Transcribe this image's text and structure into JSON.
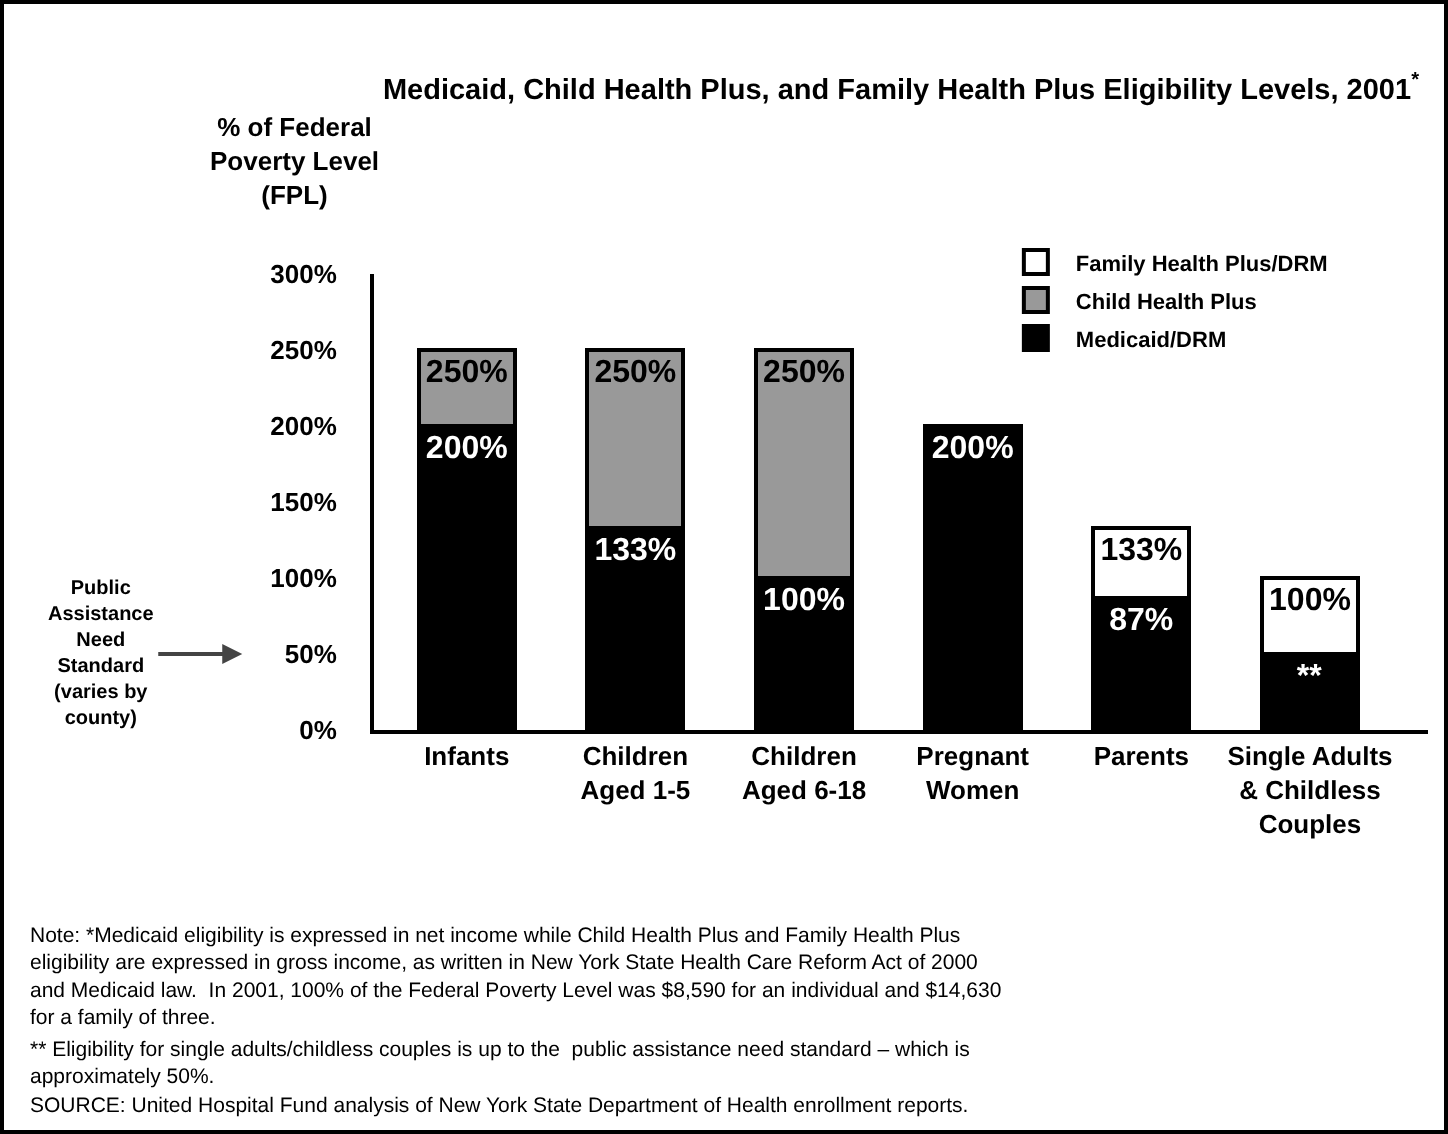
{
  "chart_data": {
    "type": "bar",
    "stacked": true,
    "title": "Medicaid, Child Health Plus, and Family Health Plus Eligibility Levels, 2001$^{*}$",
    "ylabel": "% of Federal\nPoverty Level\n(FPL)",
    "categories": [
      "Infants",
      "Children\nAged 1-5",
      "Children\nAged 6-18",
      "Pregnant\nWomen",
      "Parents",
      "Single Adults\n& Childless\nCouples"
    ],
    "series": [
      {
        "name": "Medicaid/DRM",
        "color": "#000000",
        "values": [
          200,
          133,
          100,
          200,
          87,
          50
        ],
        "value_labels": [
          "200%",
          "133%",
          "100%",
          "200%",
          "87%",
          "**"
        ]
      },
      {
        "name": "Child Health Plus",
        "color": "#999999",
        "values": [
          50,
          117,
          150,
          null,
          null,
          null
        ]
      },
      {
        "name": "Family Health Plus/DRM",
        "color": "#ffffff",
        "values": [
          null,
          null,
          null,
          null,
          46,
          50
        ]
      }
    ],
    "totals": [
      "250%",
      "250%",
      "250%",
      null,
      "133%",
      "100%"
    ],
    "ylim": [
      0,
      300
    ],
    "yticks": [
      {
        "value": 0,
        "label": "0%"
      },
      {
        "value": 50,
        "label": "50%"
      },
      {
        "value": 100,
        "label": "100%"
      },
      {
        "value": 150,
        "label": "150%"
      },
      {
        "value": 200,
        "label": "200%"
      },
      {
        "value": 250,
        "label": "250%"
      },
      {
        "value": 300,
        "label": "300%"
      }
    ],
    "grid": false,
    "legend": "top right",
    "annotations": [
      "Public\nAssistance\nNeed\nStandard\n(varies by\ncounty)",
      "Note: *Medicaid eligibility is expressed in net income while Child Health Plus and Family Health Plus\neligibility are expressed in gross income, as written in New York State Health Care Reform Act of 2000\nand Medicaid law.  In 2001, 100% of the Federal Poverty Level was $8,590 for an individual and $14,630\nfor a family of three.",
      "** Eligibility for single adults/childless couples is up to the  public assistance need standard – which is\napproximately 50%.",
      "SOURCE: United Hospital Fund analysis of New York State Department of Health enrollment reports."
    ]
  }
}
